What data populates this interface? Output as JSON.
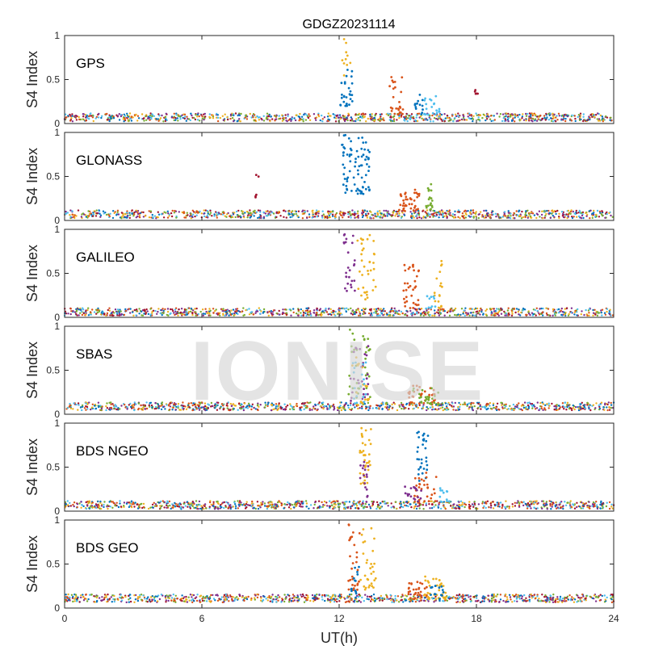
{
  "chart_data": {
    "type": "scatter",
    "title": "GDGZ20231114",
    "xlabel": "UT(h)",
    "ylabel": "S4 Index",
    "xlim": [
      0,
      24
    ],
    "ylim": [
      0,
      1
    ],
    "xticks": [
      "0",
      "6",
      "12",
      "18",
      "24"
    ],
    "yticks": [
      "0",
      "0.5",
      "1"
    ],
    "watermark": "IONISE",
    "colors": [
      "#0072bd",
      "#d95319",
      "#edb120",
      "#7e2f8e",
      "#77ac30",
      "#4dbeee",
      "#a2142f"
    ],
    "panels": [
      {
        "label": "GPS",
        "base": 0.07,
        "bursts": [
          {
            "x": [
              12.0,
              12.6
            ],
            "y": [
              0.2,
              0.62
            ],
            "c": 0,
            "n": 28
          },
          {
            "x": [
              12.1,
              12.5
            ],
            "y": [
              0.5,
              1.0
            ],
            "c": 2,
            "n": 10
          },
          {
            "x": [
              14.2,
              14.8
            ],
            "y": [
              0.1,
              0.53
            ],
            "c": 1,
            "n": 26
          },
          {
            "x": [
              15.3,
              15.8
            ],
            "y": [
              0.1,
              0.33
            ],
            "c": 0,
            "n": 14
          },
          {
            "x": [
              15.7,
              16.4
            ],
            "y": [
              0.1,
              0.32
            ],
            "c": 5,
            "n": 20
          },
          {
            "x": [
              17.9,
              18.1
            ],
            "y": [
              0.12,
              0.4
            ],
            "c": 6,
            "n": 5
          }
        ]
      },
      {
        "label": "GLONASS",
        "base": 0.07,
        "bursts": [
          {
            "x": [
              12.1,
              13.4
            ],
            "y": [
              0.3,
              0.97
            ],
            "c": 0,
            "n": 80
          },
          {
            "x": [
              14.6,
              15.5
            ],
            "y": [
              0.1,
              0.38
            ],
            "c": 1,
            "n": 40
          },
          {
            "x": [
              15.8,
              16.1
            ],
            "y": [
              0.12,
              0.45
            ],
            "c": 4,
            "n": 18
          },
          {
            "x": [
              8.3,
              8.5
            ],
            "y": [
              0.25,
              0.56
            ],
            "c": 6,
            "n": 5
          }
        ]
      },
      {
        "label": "GALILEO",
        "base": 0.06,
        "bursts": [
          {
            "x": [
              12.2,
              12.7
            ],
            "y": [
              0.3,
              0.97
            ],
            "c": 3,
            "n": 26
          },
          {
            "x": [
              12.8,
              13.6
            ],
            "y": [
              0.2,
              0.95
            ],
            "c": 2,
            "n": 36
          },
          {
            "x": [
              14.8,
              15.5
            ],
            "y": [
              0.1,
              0.6
            ],
            "c": 1,
            "n": 34
          },
          {
            "x": [
              16.1,
              16.5
            ],
            "y": [
              0.1,
              0.66
            ],
            "c": 2,
            "n": 18
          },
          {
            "x": [
              15.8,
              16.2
            ],
            "y": [
              0.08,
              0.3
            ],
            "c": 5,
            "n": 10
          }
        ]
      },
      {
        "label": "SBAS",
        "base": 0.09,
        "bursts": [
          {
            "x": [
              12.4,
              13.4
            ],
            "y": [
              0.1,
              0.97
            ],
            "c": 4,
            "n": 34
          },
          {
            "x": [
              12.5,
              13.3
            ],
            "y": [
              0.1,
              0.8
            ],
            "c": 3,
            "n": 28
          },
          {
            "x": [
              12.5,
              13.3
            ],
            "y": [
              0.1,
              0.7
            ],
            "c": 2,
            "n": 20
          },
          {
            "x": [
              12.6,
              13.2
            ],
            "y": [
              0.1,
              0.6
            ],
            "c": 5,
            "n": 18
          },
          {
            "x": [
              15.0,
              16.2
            ],
            "y": [
              0.1,
              0.33
            ],
            "c": 1,
            "n": 34
          },
          {
            "x": [
              15.2,
              16.4
            ],
            "y": [
              0.1,
              0.3
            ],
            "c": 4,
            "n": 24
          }
        ]
      },
      {
        "label": "BDS NGEO",
        "base": 0.07,
        "bursts": [
          {
            "x": [
              12.9,
              13.4
            ],
            "y": [
              0.3,
              0.97
            ],
            "c": 2,
            "n": 34
          },
          {
            "x": [
              12.9,
              13.3
            ],
            "y": [
              0.1,
              0.6
            ],
            "c": 3,
            "n": 16
          },
          {
            "x": [
              15.4,
              15.9
            ],
            "y": [
              0.3,
              0.93
            ],
            "c": 0,
            "n": 30
          },
          {
            "x": [
              15.3,
              16.3
            ],
            "y": [
              0.1,
              0.45
            ],
            "c": 1,
            "n": 30
          },
          {
            "x": [
              14.8,
              15.6
            ],
            "y": [
              0.1,
              0.28
            ],
            "c": 3,
            "n": 18
          },
          {
            "x": [
              16.4,
              17.0
            ],
            "y": [
              0.1,
              0.3
            ],
            "c": 5,
            "n": 12
          }
        ]
      },
      {
        "label": "BDS GEO",
        "base": 0.11,
        "bursts": [
          {
            "x": [
              12.4,
              12.9
            ],
            "y": [
              0.2,
              0.98
            ],
            "c": 1,
            "n": 30
          },
          {
            "x": [
              12.9,
              13.6
            ],
            "y": [
              0.2,
              0.92
            ],
            "c": 2,
            "n": 30
          },
          {
            "x": [
              12.5,
              13.0
            ],
            "y": [
              0.1,
              0.5
            ],
            "c": 0,
            "n": 14
          },
          {
            "x": [
              15.0,
              15.9
            ],
            "y": [
              0.1,
              0.3
            ],
            "c": 1,
            "n": 30
          },
          {
            "x": [
              15.7,
              16.7
            ],
            "y": [
              0.1,
              0.36
            ],
            "c": 2,
            "n": 34
          },
          {
            "x": [
              16.0,
              16.6
            ],
            "y": [
              0.1,
              0.26
            ],
            "c": 0,
            "n": 14
          }
        ]
      }
    ]
  }
}
